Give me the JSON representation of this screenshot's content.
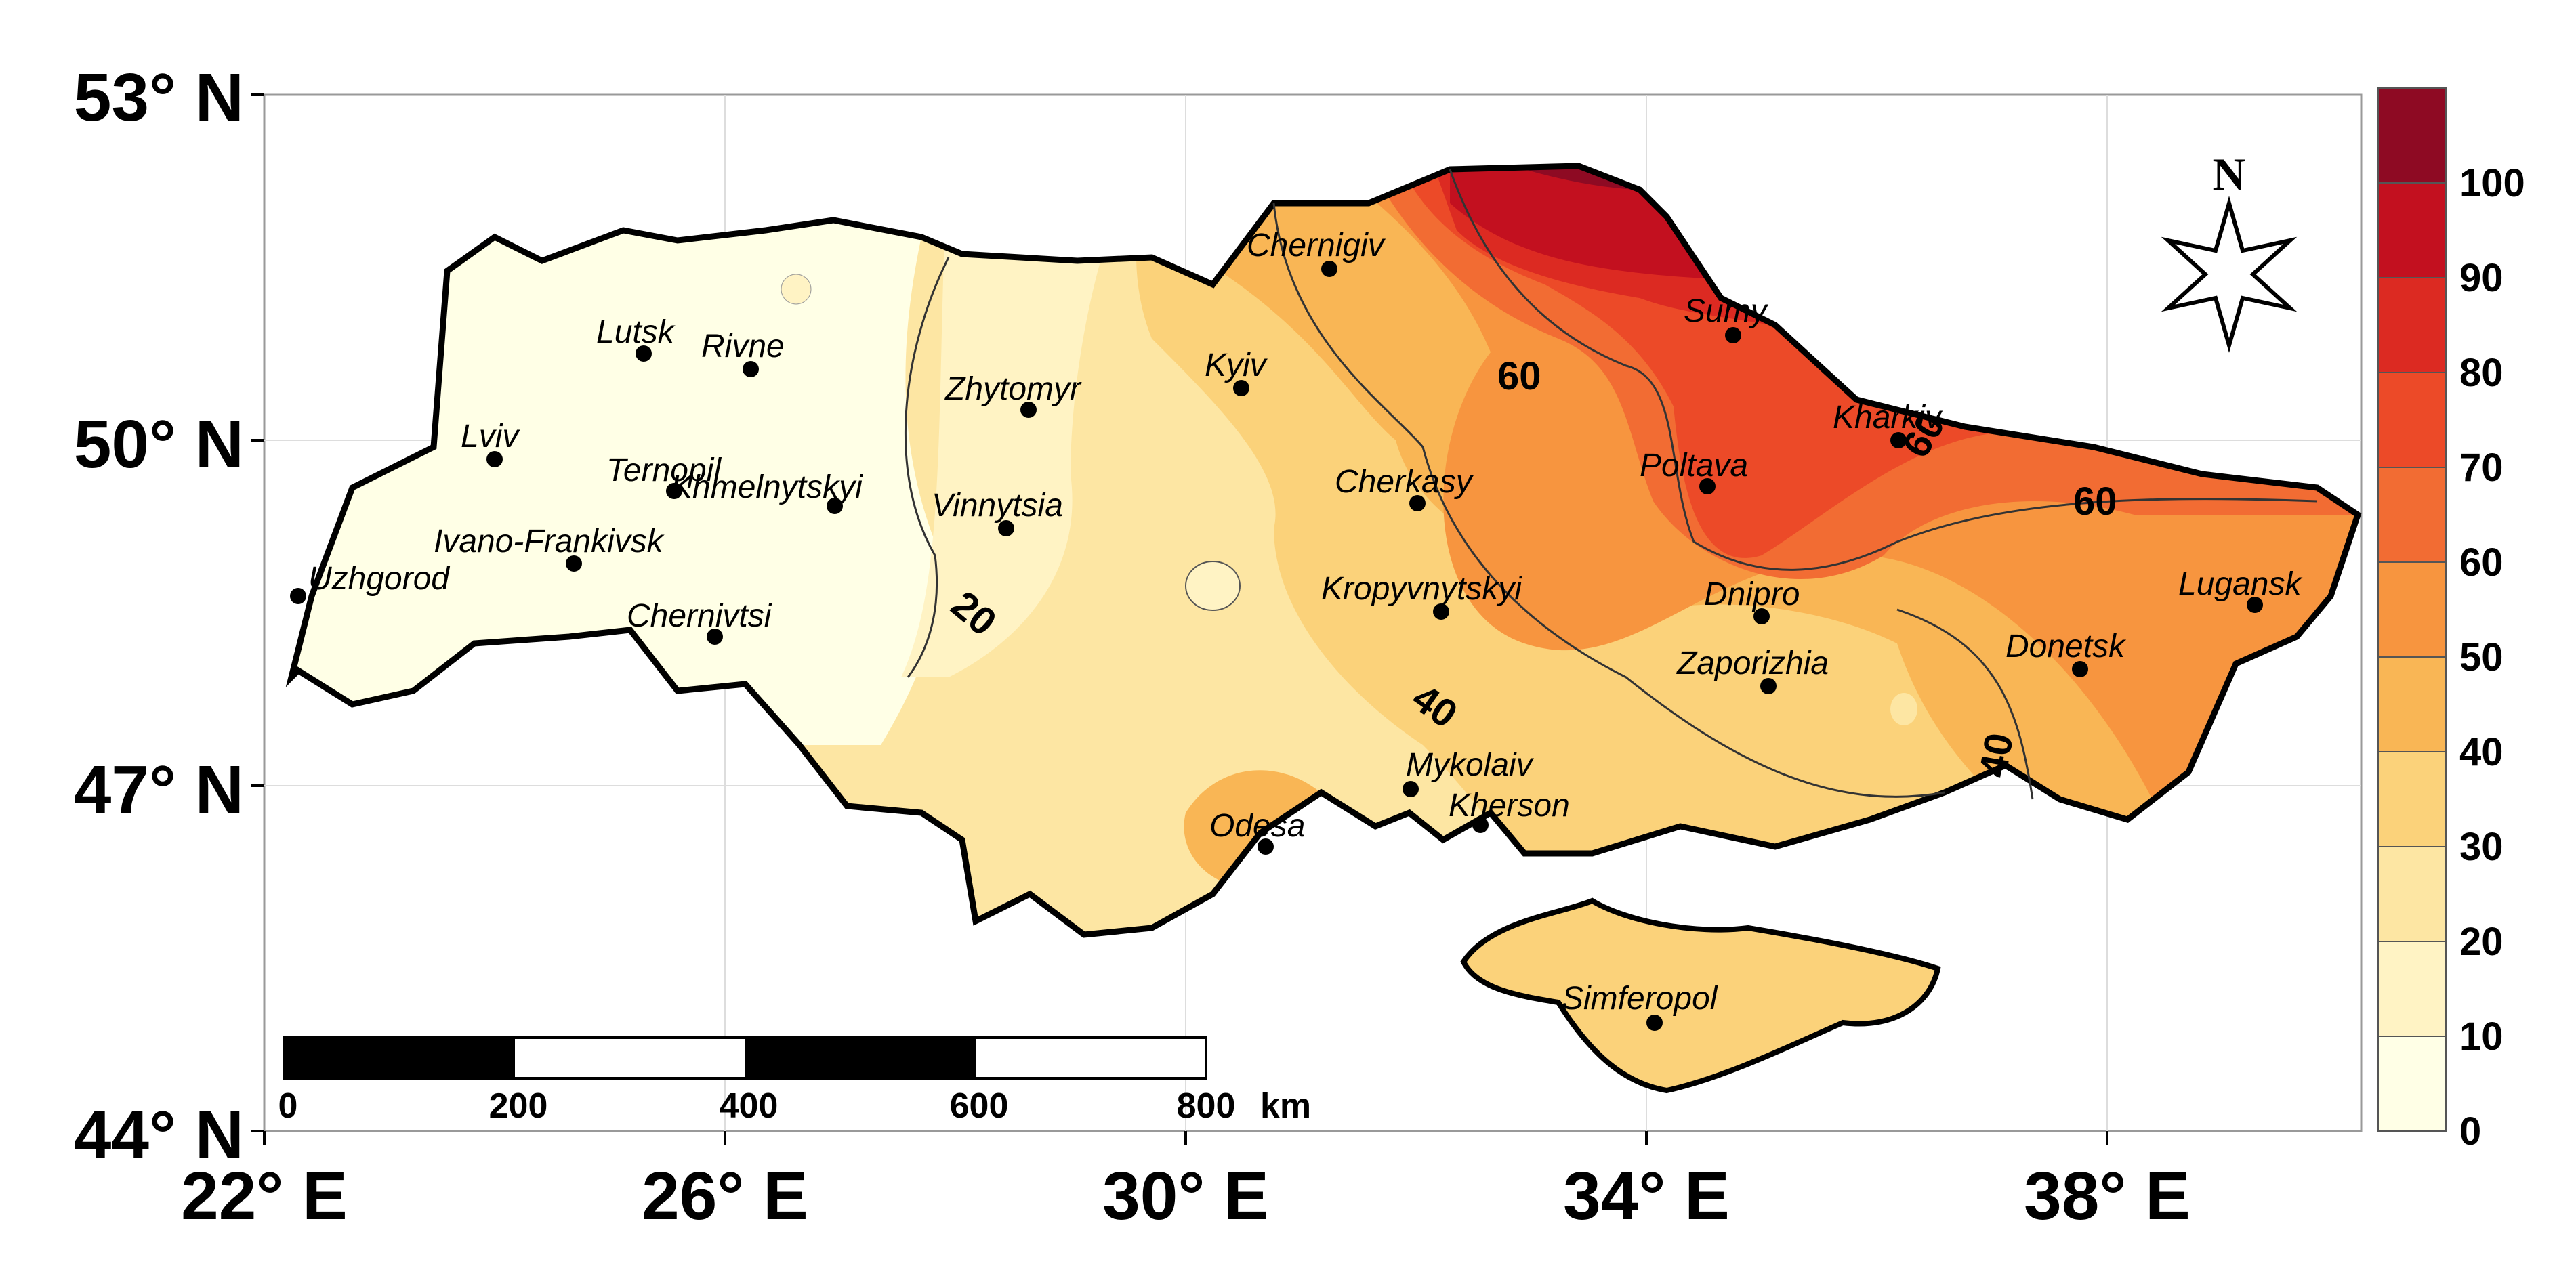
{
  "axes": {
    "y_labels": [
      "53° N",
      "50° N",
      "47° N",
      "44° N"
    ],
    "x_labels": [
      "22° E",
      "26° E",
      "30° E",
      "34° E",
      "38° E"
    ]
  },
  "legend": {
    "labels": [
      "100",
      "90",
      "80",
      "70",
      "60",
      "50",
      "40",
      "30",
      "20",
      "10",
      "0"
    ],
    "colors": [
      "#8e0a23",
      "#c3101f",
      "#dc2a22",
      "#ec4a28",
      "#f26c33",
      "#f7953f",
      "#f9b655",
      "#fbd27a",
      "#fde6a3",
      "#fff3c4",
      "#ffffe6"
    ]
  },
  "scale_bar": {
    "labels": [
      "0",
      "200",
      "400",
      "600",
      "800"
    ],
    "unit": "km"
  },
  "north_arrow": {
    "label": "N"
  },
  "contour_labels": [
    "20",
    "40",
    "60",
    "60",
    "40",
    "60"
  ],
  "cities": [
    {
      "name": "Lutsk"
    },
    {
      "name": "Rivne"
    },
    {
      "name": "Lviv"
    },
    {
      "name": "Ternopil"
    },
    {
      "name": "Khmelnytskyi"
    },
    {
      "name": "Ivano-Frankivsk"
    },
    {
      "name": "Uzhgorod"
    },
    {
      "name": "Chernivtsi"
    },
    {
      "name": "Zhytomyr"
    },
    {
      "name": "Vinnytsia"
    },
    {
      "name": "Chernigiv"
    },
    {
      "name": "Kyiv"
    },
    {
      "name": "Cherkasy"
    },
    {
      "name": "Kropyvnytskyi"
    },
    {
      "name": "Mykolaiv"
    },
    {
      "name": "Kherson"
    },
    {
      "name": "Odesa"
    },
    {
      "name": "Sumy"
    },
    {
      "name": "Kharkiv"
    },
    {
      "name": "Poltava"
    },
    {
      "name": "Dnipro"
    },
    {
      "name": "Zaporizhia"
    },
    {
      "name": "Donetsk"
    },
    {
      "name": "Lugansk"
    },
    {
      "name": "Simferopol"
    }
  ]
}
